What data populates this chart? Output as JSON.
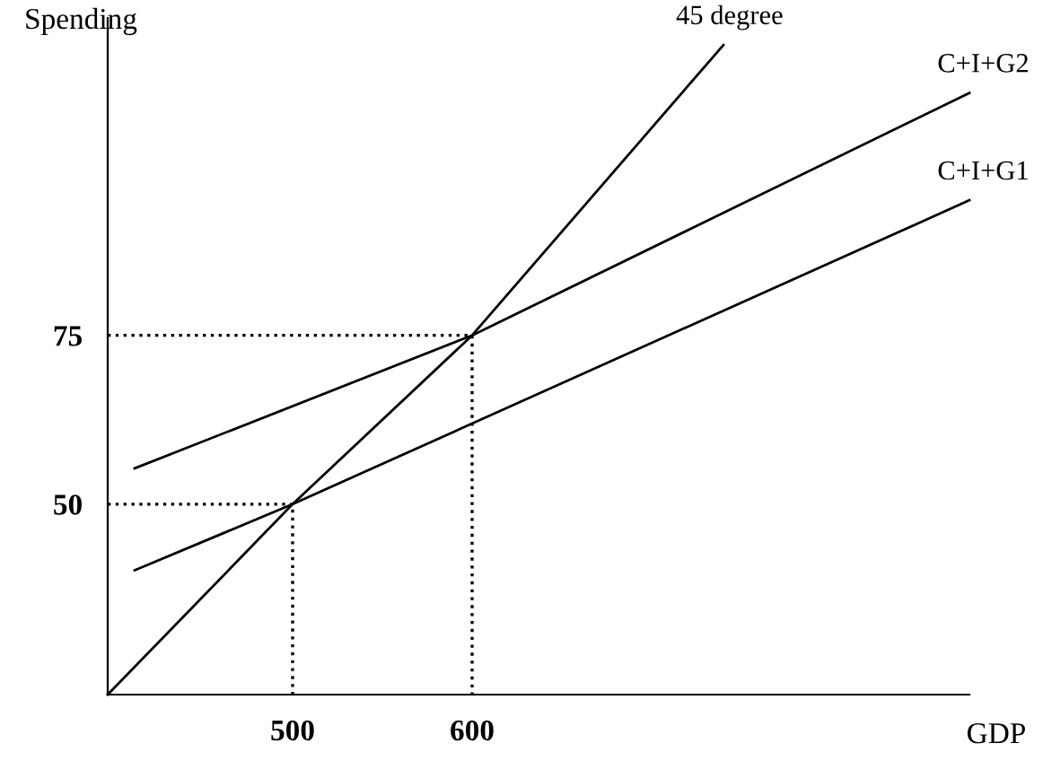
{
  "chart_data": {
    "type": "line",
    "xlabel": "GDP",
    "ylabel": "Spending",
    "xlim": [
      397,
      877
    ],
    "ylim": [
      21.8,
      122
    ],
    "xticks": [
      500,
      600
    ],
    "yticks": [
      50,
      75
    ],
    "grid": false,
    "legend": false,
    "marker": "none",
    "series": [
      {
        "name": "45 degree",
        "color": "#000000",
        "x": [
          397,
          500,
          600,
          740
        ],
        "values": [
          21.8,
          50,
          75,
          118
        ]
      },
      {
        "name": "C+I+G2",
        "color": "#000000",
        "x": [
          412,
          600,
          877
        ],
        "values": [
          55.3,
          75,
          110.9
        ]
      },
      {
        "name": "C+I+G1",
        "color": "#000000",
        "x": [
          412,
          500,
          877
        ],
        "values": [
          40.2,
          50,
          95
        ]
      },
      {
        "color": "#000000",
        "line_style": "dotted",
        "x": [
          397,
          500,
          500
        ],
        "values": [
          50,
          50,
          21.8
        ]
      },
      {
        "color": "#000000",
        "line_style": "dotted",
        "x": [
          397,
          600,
          600
        ],
        "values": [
          75,
          75,
          21.8
        ]
      }
    ]
  }
}
